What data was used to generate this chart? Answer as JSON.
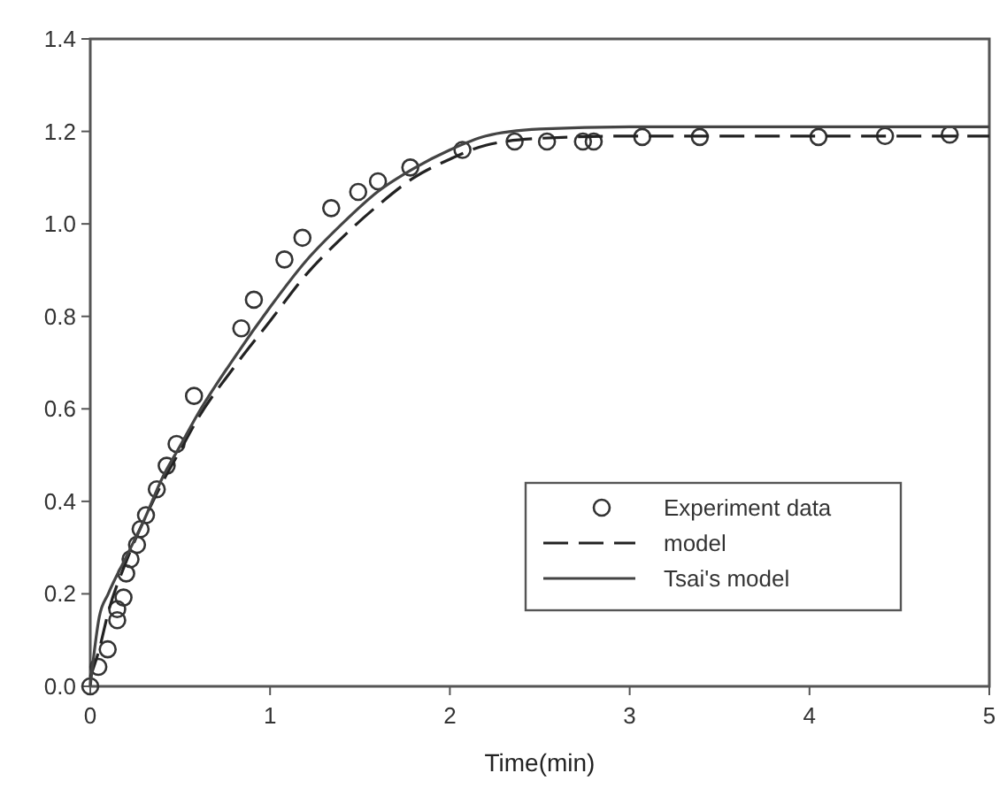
{
  "chart_data": {
    "type": "line",
    "xlabel": "Time(min)",
    "xlim": [
      0,
      5
    ],
    "xticks": [
      0,
      1,
      2,
      3,
      4,
      5
    ],
    "ylim": [
      0,
      1.4
    ],
    "yticks": [
      {
        "value": 0,
        "label": "0.0"
      },
      {
        "value": 0.2,
        "label": "0.2"
      },
      {
        "value": 0.4,
        "label": "0.4"
      },
      {
        "value": 0.6,
        "label": "0.6"
      },
      {
        "value": 0.8,
        "label": "0.8"
      },
      {
        "value": 1,
        "label": "1.0"
      },
      {
        "value": 1.2,
        "label": "1.2"
      },
      {
        "value": 1.4,
        "label": "1.4"
      }
    ],
    "grid": false,
    "legend": "bottom right",
    "series": [
      {
        "name": "Experiment data",
        "type": "scatter",
        "marker": "circle",
        "color": "#333333",
        "x": [
          0,
          0.045,
          0.097,
          0.15,
          0.15,
          0.185,
          0.2,
          0.224,
          0.26,
          0.28,
          0.31,
          0.37,
          0.425,
          0.48,
          0.577,
          0.84,
          0.91,
          1.08,
          1.18,
          1.34,
          1.49,
          1.6,
          1.78,
          2.07,
          2.36,
          2.54,
          2.74,
          2.8,
          3.07,
          3.39,
          4.05,
          4.42,
          4.78
        ],
        "values": [
          0,
          0.042,
          0.08,
          0.143,
          0.167,
          0.192,
          0.244,
          0.275,
          0.306,
          0.34,
          0.37,
          0.426,
          0.477,
          0.524,
          0.628,
          0.774,
          0.836,
          0.923,
          0.97,
          1.034,
          1.069,
          1.092,
          1.122,
          1.16,
          1.178,
          1.178,
          1.178,
          1.178,
          1.188,
          1.188,
          1.188,
          1.19,
          1.193
        ]
      },
      {
        "name": "model",
        "type": "line",
        "line_style": "dashed",
        "color": "#222222",
        "x": [
          0,
          0.05,
          0.1,
          0.2,
          0.3,
          0.4,
          0.5,
          0.6,
          0.8,
          1.0,
          1.2,
          1.4,
          1.6,
          1.8,
          2.0,
          2.2,
          2.5,
          3,
          5
        ],
        "values": [
          0.02,
          0.08,
          0.16,
          0.27,
          0.36,
          0.44,
          0.51,
          0.58,
          0.69,
          0.79,
          0.89,
          0.97,
          1.04,
          1.1,
          1.14,
          1.17,
          1.185,
          1.19,
          1.19
        ]
      },
      {
        "name": "Tsai's model",
        "type": "line",
        "line_style": "solid",
        "color": "#444444",
        "x": [
          0,
          0.05,
          0.1,
          0.2,
          0.3,
          0.4,
          0.5,
          0.6,
          0.8,
          1.0,
          1.2,
          1.4,
          1.6,
          1.8,
          2.0,
          2.2,
          2.5,
          3,
          5
        ],
        "values": [
          0,
          0.15,
          0.2,
          0.28,
          0.36,
          0.45,
          0.52,
          0.59,
          0.71,
          0.82,
          0.92,
          1.0,
          1.07,
          1.12,
          1.16,
          1.19,
          1.205,
          1.21,
          1.21
        ]
      }
    ]
  }
}
